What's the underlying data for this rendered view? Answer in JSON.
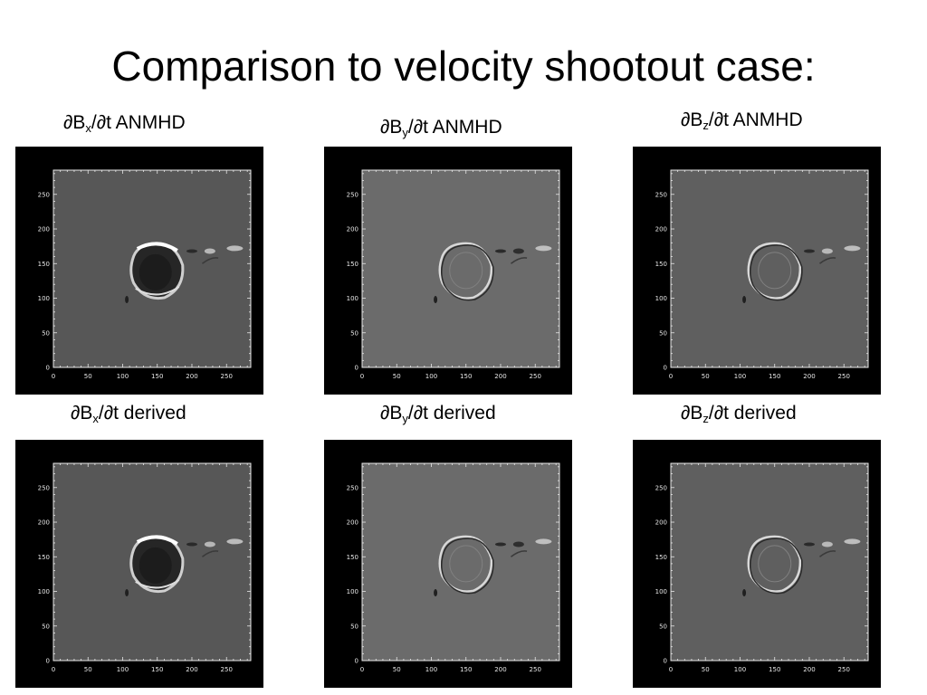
{
  "slide": {
    "title": "Comparison to velocity shootout case:"
  },
  "colors": {
    "panel_bg": "#000000",
    "plot_gray_x": "#575757",
    "plot_gray_y": "#6b6b6b",
    "plot_gray_z": "#5f5f5f",
    "axis": "#e8e8e8"
  },
  "axis_ticks": [
    "0",
    "50",
    "100",
    "150",
    "200",
    "250"
  ],
  "captions": [
    {
      "pre": "∂B",
      "sub": "x",
      "post": "/∂t ANMHD"
    },
    {
      "pre": "∂B",
      "sub": "y",
      "post": "/∂t ANMHD"
    },
    {
      "pre": "∂B",
      "sub": "z",
      "post": "/∂t ANMHD"
    },
    {
      "pre": "∂B",
      "sub": "x",
      "post": "/∂t derived"
    },
    {
      "pre": "∂B",
      "sub": "y",
      "post": "/∂t derived"
    },
    {
      "pre": "∂B",
      "sub": "z",
      "post": "/∂t derived"
    }
  ],
  "panels": [
    {
      "component": "x",
      "source": "ANMHD"
    },
    {
      "component": "y",
      "source": "ANMHD"
    },
    {
      "component": "z",
      "source": "ANMHD"
    },
    {
      "component": "x",
      "source": "derived"
    },
    {
      "component": "y",
      "source": "derived"
    },
    {
      "component": "z",
      "source": "derived"
    }
  ]
}
